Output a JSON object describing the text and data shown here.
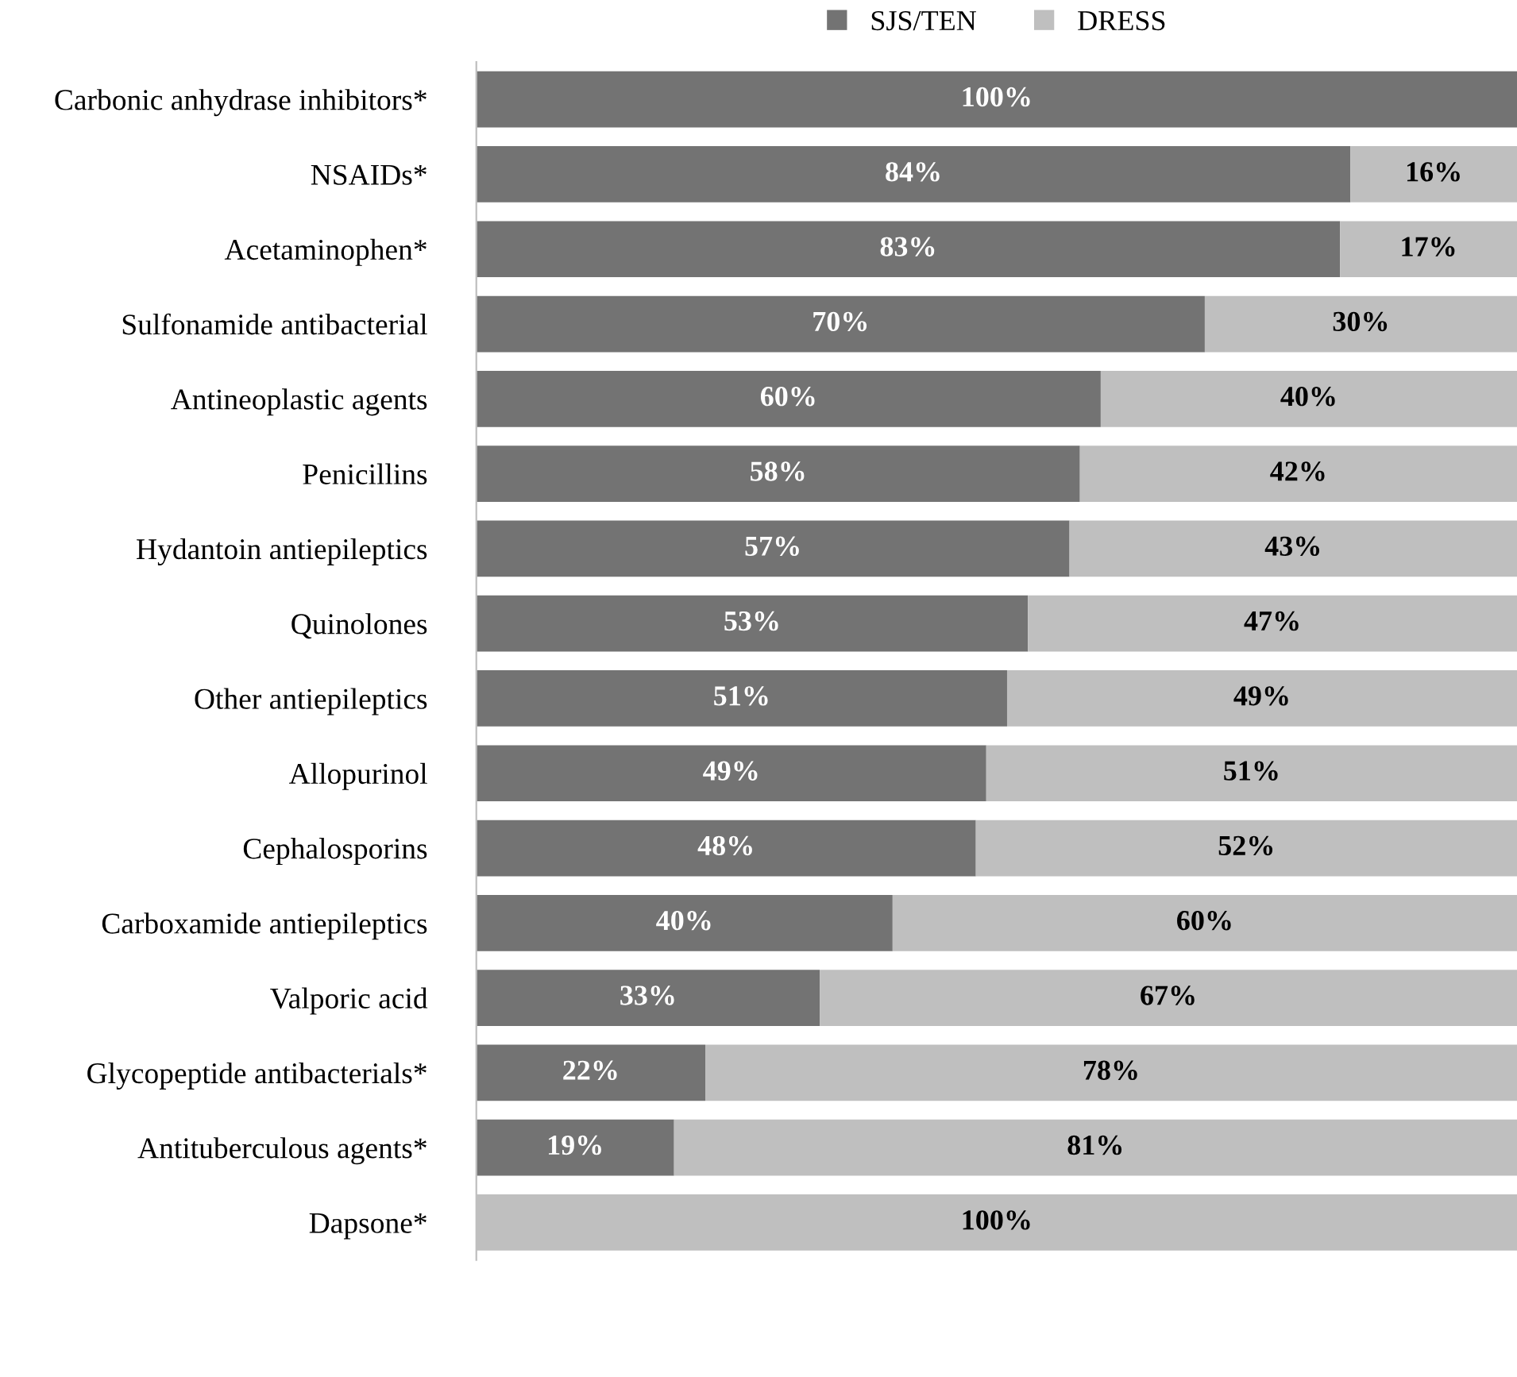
{
  "chart_data": {
    "type": "bar",
    "orientation": "horizontal",
    "stacked": true,
    "categories": [
      "Carbonic anhydrase inhibitors*",
      "NSAIDs*",
      "Acetaminophen*",
      "Sulfonamide antibacterial",
      "Antineoplastic agents",
      "Penicillins",
      "Hydantoin antiepileptics",
      "Quinolones",
      "Other antiepileptics",
      "Allopurinol",
      "Cephalosporins",
      "Carboxamide antiepileptics",
      "Valporic acid",
      "Glycopeptide antibacterials*",
      "Antituberculous agents*",
      "Dapsone*"
    ],
    "series": [
      {
        "name": "SJS/TEN",
        "color": "#737373",
        "values": [
          100,
          84,
          83,
          70,
          60,
          58,
          57,
          53,
          51,
          49,
          48,
          40,
          33,
          22,
          19,
          0
        ],
        "value_labels": [
          "100%",
          "84%",
          "83%",
          "70%",
          "60%",
          "58%",
          "57%",
          "53%",
          "51%",
          "49%",
          "48%",
          "40%",
          "33%",
          "22%",
          "19%",
          null
        ]
      },
      {
        "name": "DRESS",
        "color": "#bfbfbf",
        "values": [
          0,
          16,
          17,
          30,
          40,
          42,
          43,
          47,
          49,
          51,
          52,
          60,
          67,
          78,
          81,
          100
        ],
        "value_labels": [
          null,
          "16%",
          "17%",
          "30%",
          "40%",
          "42%",
          "43%",
          "47%",
          "49%",
          "51%",
          "52%",
          "60%",
          "67%",
          "78%",
          "81%",
          "100%"
        ]
      }
    ],
    "xlim": [
      0,
      100
    ],
    "tick_labels": "y",
    "legend": "top",
    "grid": false
  }
}
